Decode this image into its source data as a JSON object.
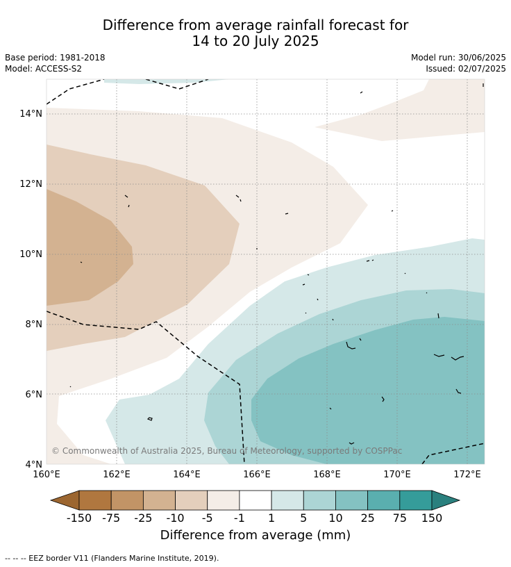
{
  "title_line1": "Difference from average rainfall forecast for",
  "title_line2": "14 to 20 July 2025",
  "base_period": "Base period: 1981-2018",
  "model": "Model: ACCESS-S2",
  "model_run": "Model run: 30/06/2025",
  "issued": "Issued: 02/07/2025",
  "copyright": "© Commonwealth of Australia 2025, Bureau of Meteorology, supported by COSPPac",
  "lat_labels": [
    "14°N",
    "12°N",
    "10°N",
    "8°N",
    "6°N",
    "4°N"
  ],
  "lon_labels": [
    "160°E",
    "162°E",
    "164°E",
    "166°E",
    "168°E",
    "170°E",
    "172°E"
  ],
  "colorbar": {
    "label": "Difference from average (mm)",
    "ticks": [
      "-150",
      "-75",
      "-25",
      "-10",
      "-5",
      "-1",
      "1",
      "5",
      "10",
      "25",
      "75",
      "150"
    ],
    "colors": [
      "#9c6630",
      "#b0773f",
      "#c29466",
      "#d3b291",
      "#e4cfbc",
      "#f4ede7",
      "#ffffff",
      "#d5e8e8",
      "#acd5d5",
      "#84c2c2",
      "#5aafaf",
      "#359c9a",
      "#2a807e"
    ]
  },
  "footer": "--  --  -- EEZ border V11 (Flanders Marine Institute, 2019)."
}
